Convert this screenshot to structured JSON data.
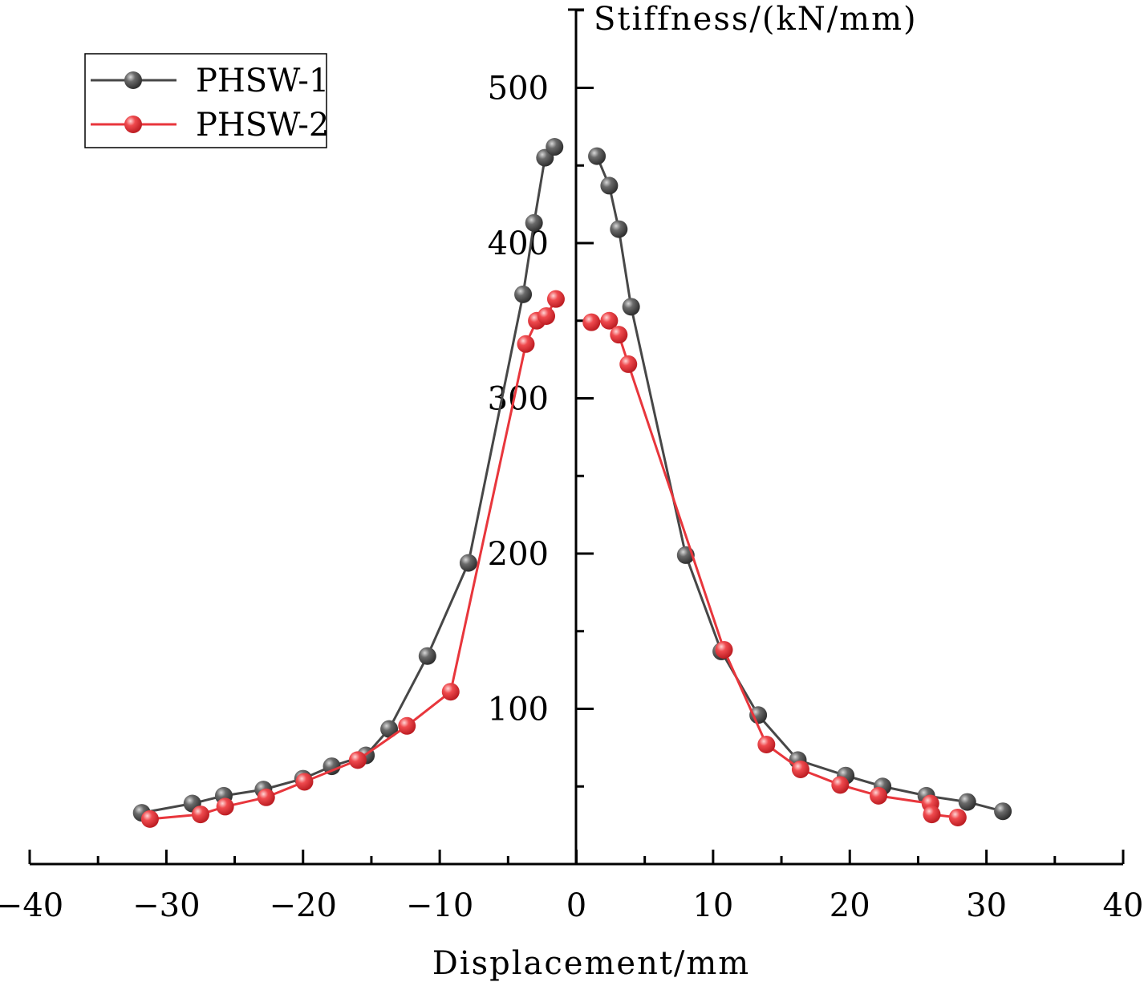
{
  "chart_data": {
    "type": "scatter",
    "xlabel": "Displacement/mm",
    "ylabel": "Stiffness/(kN/mm)",
    "xlim": [
      -40,
      40
    ],
    "ylim": [
      0,
      550
    ],
    "x_ticks": [
      -40,
      -30,
      -20,
      -10,
      0,
      10,
      20,
      30,
      40
    ],
    "y_ticks": [
      100,
      200,
      300,
      400,
      500
    ],
    "grid": false,
    "legend_position": "top-left",
    "series": [
      {
        "name": "PHSW-1",
        "color": "#474747",
        "marker": "sphere",
        "x": [
          -31.8,
          -28.1,
          -25.8,
          -22.9,
          -20.0,
          -17.9,
          -15.4,
          -13.7,
          -10.9,
          -7.9,
          -3.9,
          -3.1,
          -2.3,
          -1.6,
          1.5,
          2.4,
          3.1,
          4.0,
          8.0,
          10.6,
          13.3,
          16.2,
          19.7,
          22.4,
          25.6,
          28.6,
          31.2
        ],
        "y": [
          33,
          39,
          44,
          48,
          55,
          63,
          70,
          87,
          134,
          194,
          367,
          413,
          455,
          462,
          456,
          437,
          409,
          359,
          199,
          137,
          96,
          67,
          57,
          50,
          44,
          40,
          34
        ]
      },
      {
        "name": "PHSW-2",
        "color": "#e8363c",
        "marker": "sphere",
        "x": [
          -31.2,
          -27.5,
          -25.7,
          -22.7,
          -19.9,
          -16.0,
          -12.4,
          -9.2,
          -3.7,
          -2.9,
          -2.2,
          -1.5,
          1.1,
          2.4,
          3.1,
          3.8,
          10.8,
          13.9,
          16.4,
          19.3,
          22.1,
          25.9,
          26.0,
          27.9
        ],
        "y": [
          29,
          32,
          37,
          43,
          53,
          67,
          89,
          111,
          335,
          350,
          353,
          364,
          349,
          350,
          341,
          322,
          138,
          77,
          61,
          51,
          44,
          39,
          32,
          30
        ]
      }
    ]
  }
}
